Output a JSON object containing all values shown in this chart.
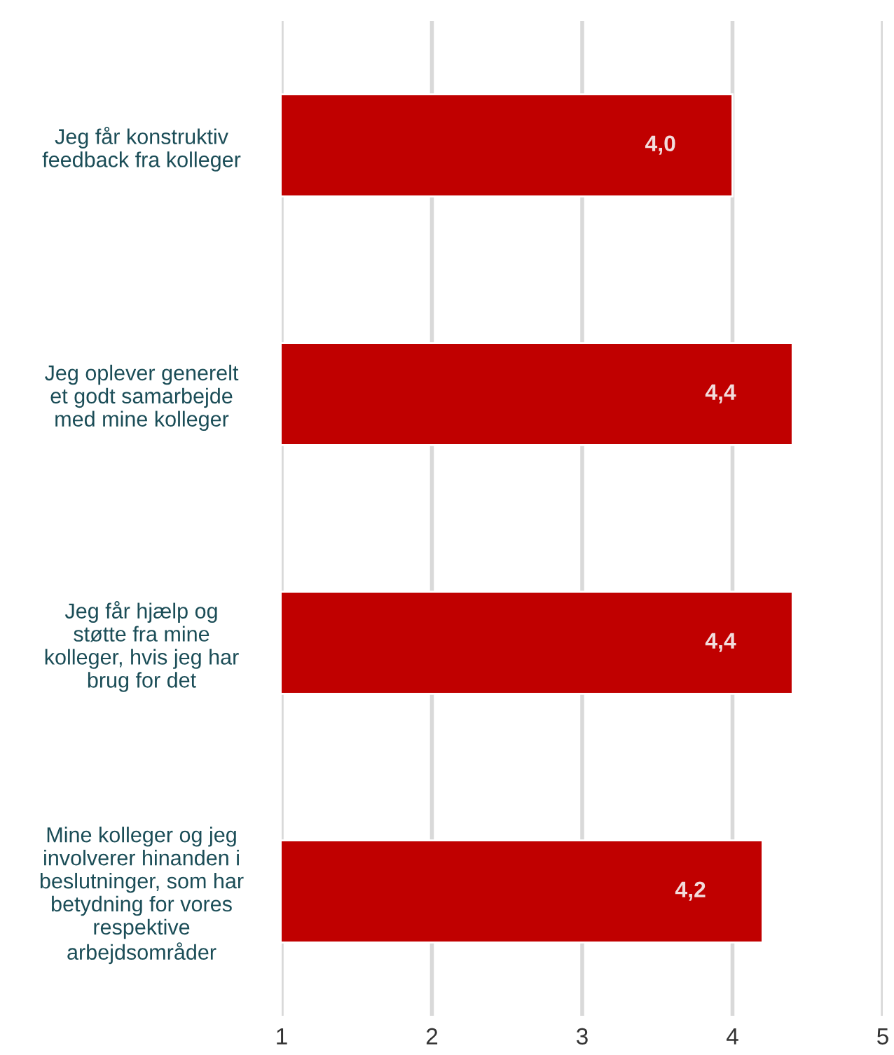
{
  "chart_data": {
    "type": "bar",
    "orientation": "horizontal",
    "categories": [
      "Jeg får konstruktiv\nfeedback fra kolleger",
      "Jeg oplever generelt\net godt samarbejde\nmed mine kolleger",
      "Jeg får hjælp og\nstøtte fra mine\nkolleger, hvis jeg har\nbrug for det",
      "Mine kolleger og jeg\ninvolverer hinanden i\nbeslutninger, som har\nbetydning for vores\nrespektive\narbejdsområder"
    ],
    "values": [
      4.0,
      4.4,
      4.4,
      4.2
    ],
    "value_labels": [
      "4,0",
      "4,4",
      "4,4",
      "4,2"
    ],
    "color": "#c00000",
    "xlim": [
      1,
      5
    ],
    "xticks": [
      1,
      2,
      3,
      4,
      5
    ],
    "grid": "x",
    "legend": false
  }
}
